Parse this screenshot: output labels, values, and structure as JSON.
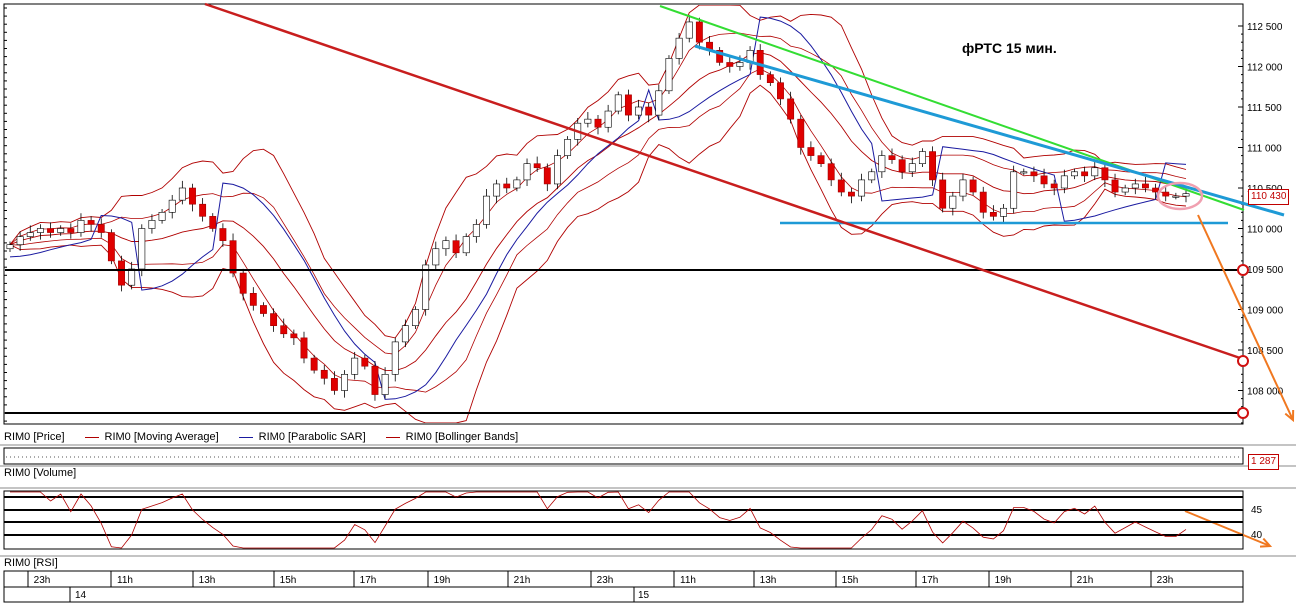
{
  "annotation_title": "фРТС    15 мин.",
  "price_badge": "110 430",
  "volume_badge": "1 287",
  "legend": {
    "price": "RIM0 [Price]",
    "ma": "RIM0 [Moving Average]",
    "sar": "RIM0 [Parabolic SAR]",
    "bb": "RIM0 [Bollinger Bands]"
  },
  "volume_label": "RIM0 [Volume]",
  "rsi_label": "RIM0 [RSI]",
  "colors": {
    "up_candle": "#ffffff",
    "down_candle": "#e00000",
    "moving_average": "#b00000",
    "parabolic_sar": "#1a1aa0",
    "bollinger": "#b00000",
    "trend_red": "#c81e1e",
    "trend_green": "#33dd33",
    "trend_blue": "#1e9ad6",
    "projection": "#f07820"
  },
  "chart_data": {
    "type": "candlestick",
    "y_axis": {
      "ticks": [
        "112 500",
        "112 000",
        "111 500",
        "111 000",
        "110 500",
        "110 000",
        "109 500",
        "109 000",
        "108 500",
        "108 000"
      ],
      "ylim": [
        107700,
        112750
      ]
    },
    "x_axis": {
      "time_ticks": [
        "23h",
        "11h",
        "13h",
        "15h",
        "17h",
        "19h",
        "21h",
        "23h",
        "11h",
        "13h",
        "15h",
        "17h",
        "19h",
        "21h",
        "23h"
      ],
      "day_labels": [
        "14",
        "15"
      ]
    },
    "rsi_ticks": [
      "45",
      "40"
    ],
    "close_series": [
      109800,
      109900,
      109950,
      110000,
      109950,
      110000,
      109950,
      110100,
      110050,
      109950,
      109600,
      109300,
      109500,
      110000,
      110100,
      110200,
      110350,
      110500,
      110300,
      110150,
      110000,
      109850,
      109450,
      109200,
      109050,
      108950,
      108800,
      108700,
      108650,
      108400,
      108250,
      108150,
      108000,
      108200,
      108400,
      108300,
      107950,
      108200,
      108600,
      108800,
      109000,
      109550,
      109750,
      109850,
      109700,
      109900,
      110050,
      110400,
      110550,
      110500,
      110600,
      110800,
      110750,
      110550,
      110900,
      111100,
      111300,
      111350,
      111250,
      111450,
      111650,
      111400,
      111500,
      111400,
      111700,
      112100,
      112350,
      112550,
      112300,
      112200,
      112050,
      112000,
      112050,
      112200,
      111900,
      111800,
      111600,
      111350,
      111000,
      110900,
      110800,
      110600,
      110450,
      110400,
      110600,
      110700,
      110900,
      110850,
      110700,
      110800,
      110950,
      110600,
      110250,
      110400,
      110600,
      110450,
      110200,
      110150,
      110250,
      110700,
      110700,
      110650,
      110550,
      110500,
      110650,
      110700,
      110650,
      110750,
      110600,
      110450,
      110500,
      110550,
      110500,
      110450,
      110400,
      110400,
      110430
    ]
  }
}
